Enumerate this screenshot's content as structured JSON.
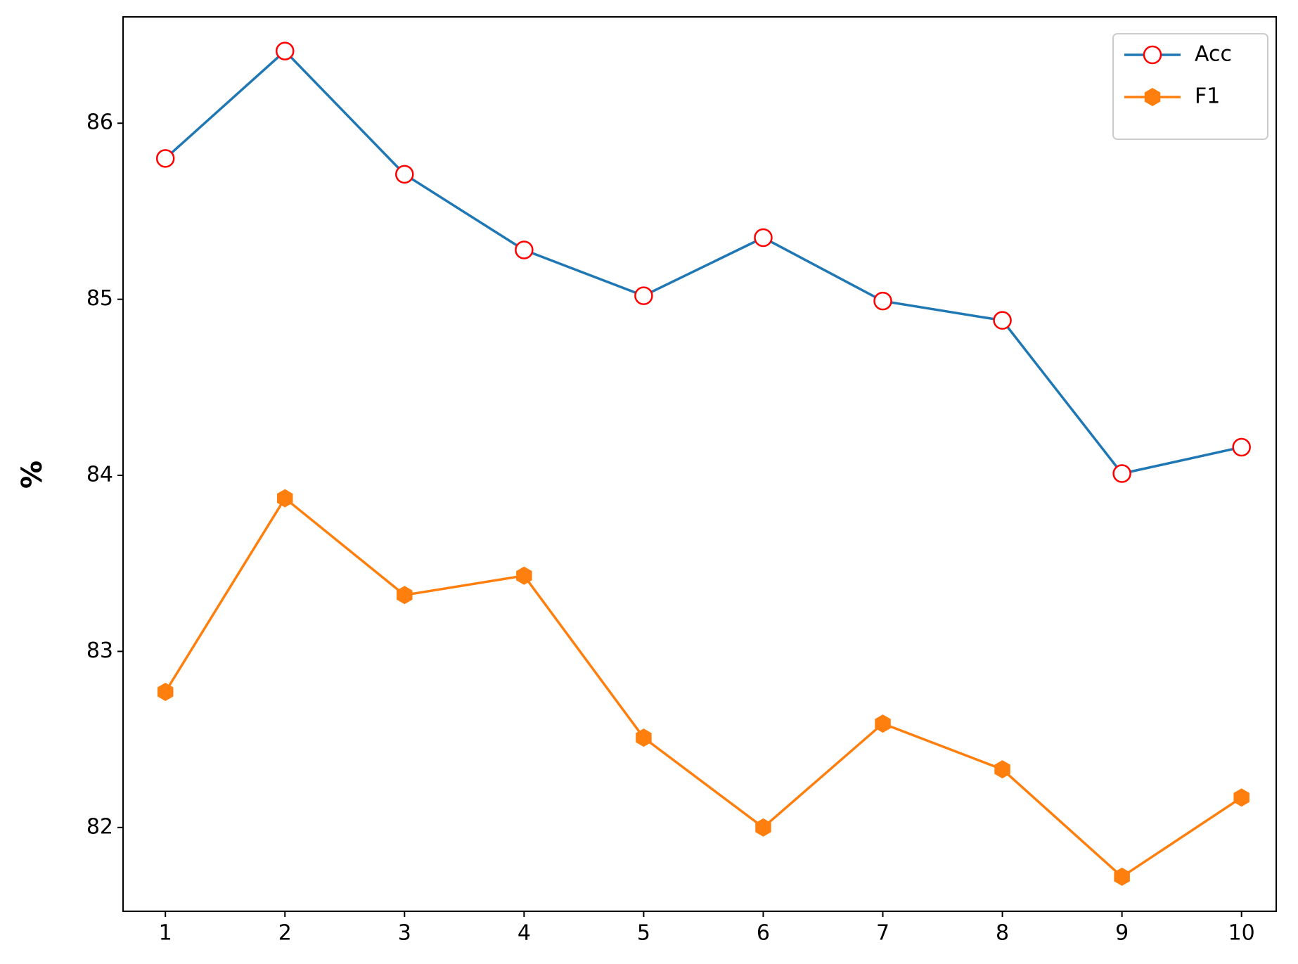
{
  "chart_data": {
    "type": "line",
    "ylabel": "%",
    "x": [
      1,
      2,
      3,
      4,
      5,
      6,
      7,
      8,
      9,
      10
    ],
    "series": [
      {
        "name": "Acc",
        "color": "#1f77b4",
        "marker": "open-circle",
        "marker_edge": "red",
        "values": [
          85.8,
          86.41,
          85.71,
          85.28,
          85.02,
          85.35,
          84.99,
          84.88,
          84.01,
          84.16
        ]
      },
      {
        "name": "F1",
        "color": "#ff7f0e",
        "marker": "hexagon",
        "values": [
          82.77,
          83.87,
          83.32,
          83.43,
          82.51,
          82.0,
          82.59,
          82.33,
          81.72,
          82.17
        ]
      }
    ],
    "xlim": [
      0.646,
      10.29
    ],
    "xticks": [
      1,
      2,
      3,
      4,
      5,
      6,
      7,
      8,
      9,
      10
    ],
    "ylim": [
      81.524,
      86.604
    ],
    "yticks": [
      82,
      83,
      84,
      85,
      86
    ],
    "grid": false,
    "legend": "upper-right"
  }
}
